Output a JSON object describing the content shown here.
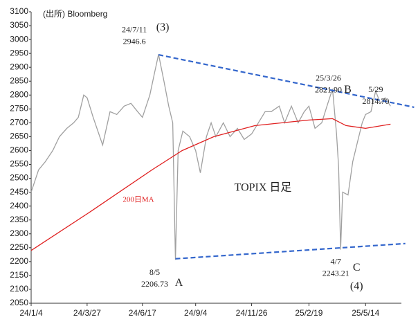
{
  "chart_data": {
    "type": "line",
    "source": "(出所) Bloomberg",
    "title": "TOPIX 日足",
    "xlim": [
      "2024-01-04",
      "2025-07-01"
    ],
    "ylim": [
      2050,
      3100
    ],
    "yticks": [
      2050,
      2100,
      2150,
      2200,
      2250,
      2300,
      2350,
      2400,
      2450,
      2500,
      2550,
      2600,
      2650,
      2700,
      2750,
      2800,
      2850,
      2900,
      2950,
      3000,
      3050,
      3100
    ],
    "xticks": [
      {
        "value": "2024-01-04",
        "label": "24/1/4"
      },
      {
        "value": "2024-03-27",
        "label": "24/3/27"
      },
      {
        "value": "2024-06-17",
        "label": "24/6/17"
      },
      {
        "value": "2024-09-04",
        "label": "24/9/4"
      },
      {
        "value": "2024-11-26",
        "label": "24/11/26"
      },
      {
        "value": "2025-02-19",
        "label": "25/2/19"
      },
      {
        "value": "2025-05-14",
        "label": "25/5/14"
      }
    ],
    "series": [
      {
        "color": "#a0a0a0",
        "x": [
          "2024-01-04",
          "2024-01-15",
          "2024-01-25",
          "2024-02-05",
          "2024-02-15",
          "2024-02-26",
          "2024-03-07",
          "2024-03-14",
          "2024-03-22",
          "2024-03-27",
          "2024-04-05",
          "2024-04-19",
          "2024-04-30",
          "2024-05-10",
          "2024-05-21",
          "2024-05-31",
          "2024-06-10",
          "2024-06-17",
          "2024-06-28",
          "2024-07-05",
          "2024-07-11",
          "2024-07-19",
          "2024-07-26",
          "2024-08-01",
          "2024-08-05",
          "2024-08-09",
          "2024-08-16",
          "2024-08-26",
          "2024-09-04",
          "2024-09-11",
          "2024-09-20",
          "2024-09-27",
          "2024-10-04",
          "2024-10-15",
          "2024-10-25",
          "2024-11-05",
          "2024-11-15",
          "2024-11-26",
          "2024-12-06",
          "2024-12-16",
          "2024-12-25",
          "2025-01-06",
          "2025-01-14",
          "2025-01-24",
          "2025-02-03",
          "2025-02-12",
          "2025-02-19",
          "2025-02-28",
          "2025-03-10",
          "2025-03-19",
          "2025-03-26",
          "2025-04-01",
          "2025-04-04",
          "2025-04-07",
          "2025-04-10",
          "2025-04-18",
          "2025-04-25",
          "2025-05-02",
          "2025-05-09",
          "2025-05-14",
          "2025-05-22",
          "2025-05-29",
          "2025-06-05",
          "2025-06-12",
          "2025-06-20"
        ],
        "values": [
          2450,
          2530,
          2560,
          2600,
          2650,
          2680,
          2700,
          2720,
          2800,
          2790,
          2720,
          2620,
          2740,
          2730,
          2760,
          2770,
          2740,
          2720,
          2800,
          2880,
          2946.6,
          2850,
          2760,
          2700,
          2206.73,
          2600,
          2670,
          2650,
          2600,
          2520,
          2650,
          2700,
          2650,
          2700,
          2650,
          2680,
          2640,
          2660,
          2700,
          2740,
          2740,
          2760,
          2700,
          2760,
          2700,
          2740,
          2760,
          2680,
          2700,
          2770,
          2821.9,
          2660,
          2540,
          2243.21,
          2450,
          2440,
          2560,
          2630,
          2700,
          2730,
          2740,
          2814.7,
          2770,
          2790,
          2760
        ]
      },
      {
        "name": "200日MA",
        "color": "#e02020",
        "x": [
          "2024-01-04",
          "2024-04-01",
          "2024-07-01",
          "2024-08-15",
          "2024-10-01",
          "2024-12-01",
          "2025-02-19",
          "2025-03-26",
          "2025-04-15",
          "2025-05-14",
          "2025-06-20"
        ],
        "values": [
          2240,
          2380,
          2530,
          2600,
          2650,
          2690,
          2710,
          2715,
          2690,
          2680,
          2695
        ]
      }
    ],
    "trendlines": [
      {
        "color": "#3366cc",
        "x": [
          "2024-07-11",
          "2025-07-25"
        ],
        "values": [
          2945,
          2756
        ]
      },
      {
        "color": "#3366cc",
        "x": [
          "2024-08-05",
          "2025-07-12"
        ],
        "values": [
          2210,
          2265
        ]
      }
    ],
    "annotations": [
      {
        "x": "2024-07-11",
        "value": 2946.6,
        "date_label": "24/7/11",
        "label": "2946.6",
        "tag": "(3)"
      },
      {
        "x": "2025-03-26",
        "value": 2821.9,
        "date_label": "25/3/26",
        "label": "2821.90",
        "tag": "B"
      },
      {
        "x": "2025-05-29",
        "value": 2814.7,
        "date_label": "5/29",
        "label": "2814.70"
      },
      {
        "x": "2024-08-05",
        "value": 2206.73,
        "date_label": "8/5",
        "label": "2206.73",
        "tag": "A"
      },
      {
        "x": "2025-04-07",
        "value": 2243.21,
        "date_label": "4/7",
        "label": "2243.21",
        "tag": "C",
        "tag2": "(4)"
      }
    ]
  }
}
